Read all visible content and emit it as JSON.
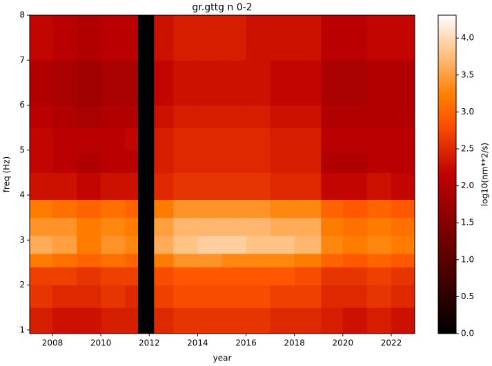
{
  "chart_data": {
    "type": "heatmap",
    "title": "gr.gttg n 0-2",
    "xlabel": "year",
    "ylabel": "freq (Hz)",
    "colormap": "gist_heat",
    "colorbar_label": "log10(nm**2/s)",
    "xlim": [
      2007.06,
      2022.97
    ],
    "ylim": [
      0.92,
      8
    ],
    "clim": [
      0,
      4.31
    ],
    "xticks": [
      2008,
      2010,
      2012,
      2014,
      2016,
      2018,
      2020,
      2022
    ],
    "yticks": [
      1,
      2,
      3,
      4,
      5,
      6,
      7,
      8
    ],
    "cticks": [
      {
        "value": 0,
        "label": "0.0"
      },
      {
        "value": 0.5,
        "label": "0.5"
      },
      {
        "value": 1,
        "label": "1.0"
      },
      {
        "value": 1.5,
        "label": "1.5"
      },
      {
        "value": 2,
        "label": "2.0"
      },
      {
        "value": 2.5,
        "label": "2.5"
      },
      {
        "value": 3,
        "label": "3.0"
      },
      {
        "value": 3.5,
        "label": "3.5"
      },
      {
        "value": 4,
        "label": "4.0"
      }
    ],
    "x_edges": [
      2007.06,
      2008,
      2009,
      2010,
      2011,
      2011.54,
      2012.2,
      2013,
      2014,
      2015,
      2016,
      2017,
      2018,
      2019.1,
      2020,
      2021,
      2022,
      2022.97
    ],
    "y_edges": [
      0.92,
      1.5,
      2.0,
      2.4,
      2.7,
      3.1,
      3.5,
      3.9,
      4.5,
      5.0,
      5.5,
      6.0,
      7.0,
      8.0
    ],
    "z": [
      [
        2.4,
        2.3,
        2.3,
        2.4,
        2.4,
        0,
        2.5,
        2.6,
        2.6,
        2.6,
        2.6,
        2.5,
        2.5,
        2.4,
        2.3,
        2.4,
        2.3
      ],
      [
        2.6,
        2.5,
        2.5,
        2.6,
        2.5,
        0,
        2.7,
        2.8,
        2.8,
        2.8,
        2.8,
        2.7,
        2.7,
        2.5,
        2.5,
        2.6,
        2.5
      ],
      [
        2.7,
        2.7,
        2.6,
        2.7,
        2.7,
        0,
        2.8,
        2.9,
        2.9,
        2.9,
        2.9,
        2.9,
        2.8,
        2.6,
        2.6,
        2.7,
        2.6
      ],
      [
        3.2,
        3.1,
        3.0,
        3.1,
        3.0,
        0,
        3.2,
        3.4,
        3.4,
        3.3,
        3.3,
        3.3,
        3.2,
        3.0,
        2.9,
        3.0,
        2.9
      ],
      [
        3.6,
        3.5,
        3.2,
        3.4,
        3.3,
        0,
        3.6,
        3.8,
        3.9,
        3.9,
        3.8,
        3.8,
        3.7,
        3.3,
        3.2,
        3.3,
        3.2
      ],
      [
        3.4,
        3.4,
        3.2,
        3.3,
        3.2,
        0,
        3.5,
        3.7,
        3.7,
        3.7,
        3.7,
        3.6,
        3.6,
        3.2,
        3.1,
        3.2,
        3.1
      ],
      [
        3.2,
        3.1,
        3.0,
        3.1,
        3.0,
        0,
        3.2,
        3.4,
        3.4,
        3.4,
        3.4,
        3.3,
        3.3,
        3.0,
        2.9,
        3.0,
        2.9
      ],
      [
        2.3,
        2.3,
        2.2,
        2.3,
        2.3,
        0,
        2.5,
        2.6,
        2.6,
        2.6,
        2.6,
        2.5,
        2.5,
        2.2,
        2.2,
        2.3,
        2.2
      ],
      [
        2.2,
        2.1,
        2.0,
        2.1,
        2.1,
        0,
        2.4,
        2.5,
        2.5,
        2.5,
        2.5,
        2.4,
        2.4,
        2.0,
        2.0,
        2.1,
        2.1
      ],
      [
        2.2,
        2.1,
        2.1,
        2.1,
        2.2,
        0,
        2.4,
        2.5,
        2.5,
        2.5,
        2.5,
        2.4,
        2.4,
        2.1,
        2.1,
        2.1,
        2.1
      ],
      [
        2.1,
        2.0,
        1.9,
        2.0,
        2.0,
        0,
        2.3,
        2.4,
        2.4,
        2.4,
        2.4,
        2.3,
        2.3,
        2.0,
        2.0,
        2.0,
        2.0
      ],
      [
        2.0,
        1.9,
        1.8,
        1.9,
        1.9,
        0,
        2.2,
        2.3,
        2.3,
        2.3,
        2.3,
        2.2,
        2.2,
        1.9,
        1.9,
        2.0,
        2.0
      ],
      [
        2.2,
        2.1,
        2.0,
        2.1,
        2.1,
        0,
        2.3,
        2.4,
        2.4,
        2.4,
        2.3,
        2.3,
        2.3,
        2.1,
        2.1,
        2.2,
        2.2
      ]
    ]
  }
}
